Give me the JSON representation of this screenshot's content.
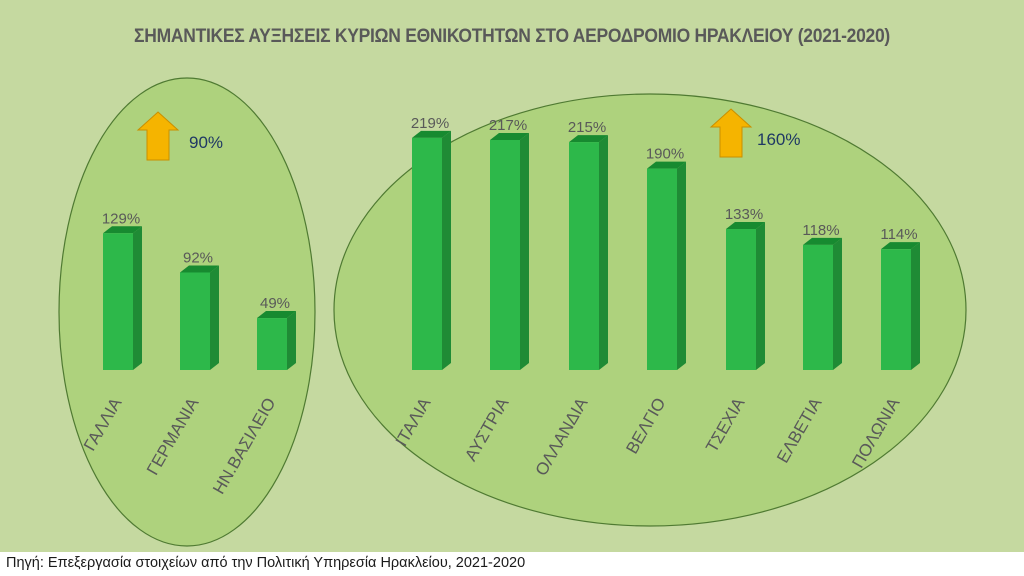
{
  "chart_data": {
    "type": "bar",
    "title": "ΣΗΜΑΝΤΙΚΕΣ ΑΥΞΗΣΕΙΣ ΚΥΡΙΩΝ ΕΘΝΙΚΟΤΗΤΩΝ ΣΤΟ ΑΕΡΟΔΡΟΜΙΟ ΗΡΑΚΛΕΙΟΥ (2021-2020)",
    "xlabel": "",
    "ylabel": "",
    "ylim": [
      0,
      250
    ],
    "grid": false,
    "bar_color": "#2db84a",
    "groups": [
      {
        "categories": [
          "ΓΑΛΛΙΑ",
          "ΓΕΡΜΑΝΙΑ",
          "ΗΝ.ΒΑΣΙΛΕΙΟ"
        ],
        "values": [
          129,
          92,
          49
        ],
        "value_labels": [
          "129%",
          "92%",
          "49%"
        ],
        "group_increase_label": "90%"
      },
      {
        "categories": [
          "ΙΤΑΛΙΑ",
          "ΑΥΣΤΡΙΑ",
          "ΟΛΛΑΝΔΙΑ",
          "ΒΕΛΓΙΟ",
          "ΤΣΕΧΙΑ",
          "ΕΛΒΕΤΙΑ",
          "ΠΟΛΩΝΙΑ"
        ],
        "values": [
          219,
          217,
          215,
          190,
          133,
          118,
          114
        ],
        "value_labels": [
          "219%",
          "217%",
          "215%",
          "190%",
          "133%",
          "118%",
          "114%"
        ],
        "group_increase_label": "160%"
      }
    ]
  },
  "source_note": "Πηγή: Επεξεργασία στοιχείων από την Πολιτική Υπηρεσία Ηρακλείου, 2021-2020",
  "icons": {
    "increase": "up-arrow-icon",
    "arrow_color": "#f5b400"
  },
  "colors": {
    "background": "#c5d9a0",
    "ellipse_fill": "#a6cf72",
    "ellipse_stroke": "#4f7a32",
    "bar_front": "#2db84a",
    "bar_side": "#1f8b35",
    "bar_top": "#178a30",
    "label_text": "#595959",
    "increase_text": "#1f3864"
  }
}
